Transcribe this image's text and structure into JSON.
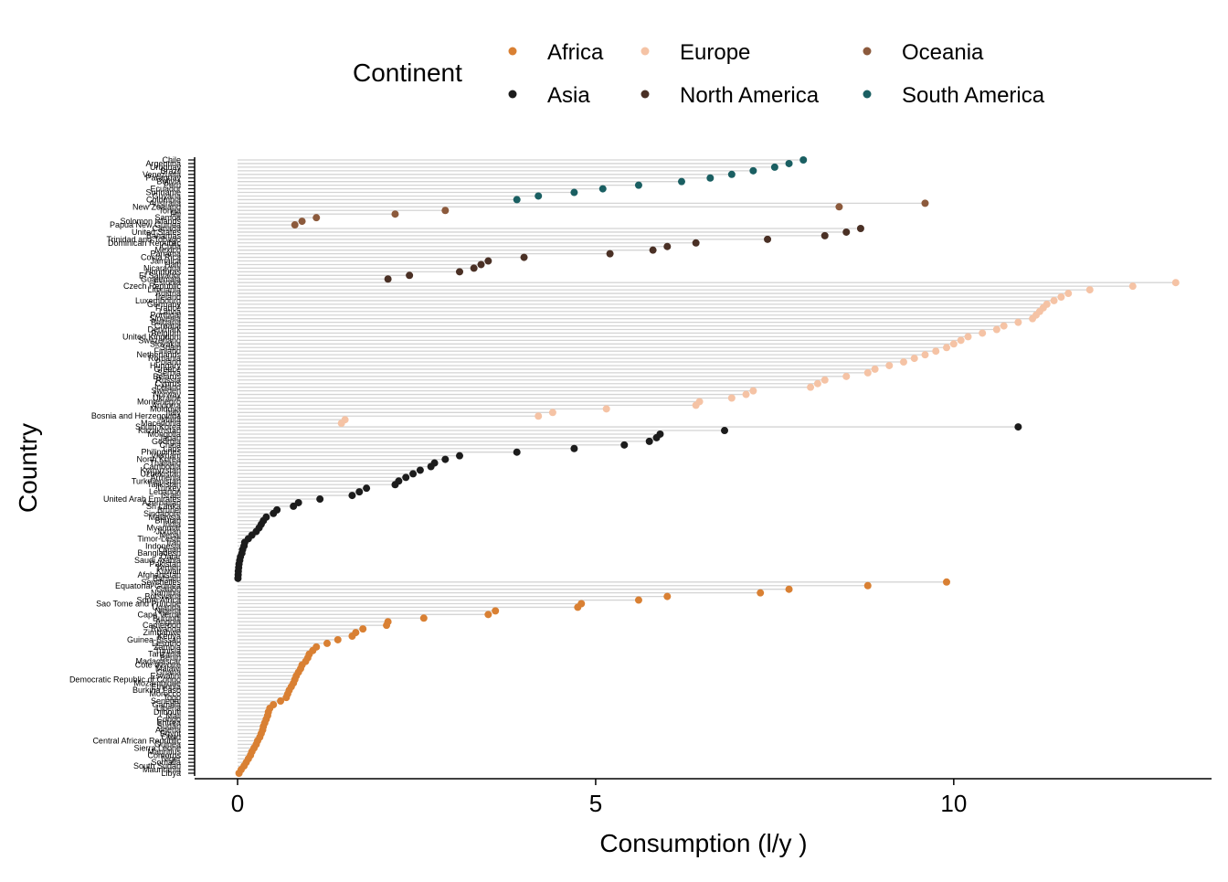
{
  "chart_data": {
    "type": "scatter",
    "subtype": "lollipop",
    "xlabel": "Consumption (l/y )",
    "ylabel": "Country",
    "xlim": [
      -0.6,
      13.6
    ],
    "x_ticks": [
      0,
      5,
      10
    ],
    "legend": {
      "title": "Continent",
      "placement": "top",
      "entries": [
        {
          "name": "Africa",
          "color": "#d98033"
        },
        {
          "name": "Asia",
          "color": "#1c1c1c"
        },
        {
          "name": "Europe",
          "color": "#f5c3a5"
        },
        {
          "name": "North America",
          "color": "#4a3025"
        },
        {
          "name": "Oceania",
          "color": "#8c5a3c"
        },
        {
          "name": "South America",
          "color": "#1a5f62"
        }
      ]
    },
    "series": [
      {
        "name": "South America",
        "color": "#1a5f62",
        "points": [
          {
            "country": "Chile",
            "value": 7.9
          },
          {
            "country": "Argentina",
            "value": 7.7
          },
          {
            "country": "Uruguay",
            "value": 7.5
          },
          {
            "country": "Brazil",
            "value": 7.2
          },
          {
            "country": "Venezuela",
            "value": 6.9
          },
          {
            "country": "Paraguay",
            "value": 6.6
          },
          {
            "country": "Bolivia",
            "value": 6.2
          },
          {
            "country": "Peru",
            "value": 5.6
          },
          {
            "country": "Ecuador",
            "value": 5.1
          },
          {
            "country": "Suriname",
            "value": 4.7
          },
          {
            "country": "Guyana",
            "value": 4.2
          },
          {
            "country": "Colombia",
            "value": 3.9
          }
        ]
      },
      {
        "name": "Oceania",
        "color": "#8c5a3c",
        "points": [
          {
            "country": "Australia",
            "value": 9.6
          },
          {
            "country": "New Zealand",
            "value": 8.4
          },
          {
            "country": "Tonga",
            "value": 2.9
          },
          {
            "country": "Fiji",
            "value": 2.2
          },
          {
            "country": "Samoa",
            "value": 1.1
          },
          {
            "country": "Solomon Islands",
            "value": 0.9
          },
          {
            "country": "Papua New Guinea",
            "value": 0.8
          }
        ]
      },
      {
        "name": "North America",
        "color": "#4a3025",
        "points": [
          {
            "country": "Canada",
            "value": 8.7
          },
          {
            "country": "United States",
            "value": 8.5
          },
          {
            "country": "Bahamas",
            "value": 8.2
          },
          {
            "country": "Trinidad and Tobago",
            "value": 7.4
          },
          {
            "country": "Dominican Republic",
            "value": 6.4
          },
          {
            "country": "Cuba",
            "value": 6.0
          },
          {
            "country": "Mexico",
            "value": 5.8
          },
          {
            "country": "Panama",
            "value": 5.2
          },
          {
            "country": "Costa Rica",
            "value": 4.0
          },
          {
            "country": "Jamaica",
            "value": 3.5
          },
          {
            "country": "Haiti",
            "value": 3.4
          },
          {
            "country": "Nicaragua",
            "value": 3.3
          },
          {
            "country": "Honduras",
            "value": 3.1
          },
          {
            "country": "El Salvador",
            "value": 2.4
          },
          {
            "country": "Guatemala",
            "value": 2.1
          }
        ]
      },
      {
        "name": "Europe",
        "color": "#f5c3a5",
        "points": [
          {
            "country": "Estonia",
            "value": 13.1
          },
          {
            "country": "Czech Republic",
            "value": 12.5
          },
          {
            "country": "Lithuania",
            "value": 11.9
          },
          {
            "country": "Austria",
            "value": 11.6
          },
          {
            "country": "Ireland",
            "value": 11.5
          },
          {
            "country": "Luxembourg",
            "value": 11.4
          },
          {
            "country": "Germany",
            "value": 11.3
          },
          {
            "country": "France",
            "value": 11.25
          },
          {
            "country": "Latvia",
            "value": 11.2
          },
          {
            "country": "Portugal",
            "value": 11.15
          },
          {
            "country": "Slovenia",
            "value": 11.1
          },
          {
            "country": "Bulgaria",
            "value": 10.9
          },
          {
            "country": "Croatia",
            "value": 10.7
          },
          {
            "country": "Denmark",
            "value": 10.6
          },
          {
            "country": "Belgium",
            "value": 10.4
          },
          {
            "country": "United Kingdom",
            "value": 10.2
          },
          {
            "country": "Switzerland",
            "value": 10.1
          },
          {
            "country": "Slovakia",
            "value": 10.0
          },
          {
            "country": "Spain",
            "value": 9.9
          },
          {
            "country": "Finland",
            "value": 9.75
          },
          {
            "country": "Netherlands",
            "value": 9.6
          },
          {
            "country": "Romania",
            "value": 9.45
          },
          {
            "country": "Poland",
            "value": 9.3
          },
          {
            "country": "Hungary",
            "value": 9.1
          },
          {
            "country": "Greece",
            "value": 8.9
          },
          {
            "country": "Serbia",
            "value": 8.8
          },
          {
            "country": "Belarus",
            "value": 8.5
          },
          {
            "country": "Russia",
            "value": 8.2
          },
          {
            "country": "Cyprus",
            "value": 8.1
          },
          {
            "country": "Iceland",
            "value": 8.0
          },
          {
            "country": "Sweden",
            "value": 7.2
          },
          {
            "country": "Norway",
            "value": 7.1
          },
          {
            "country": "Ukraine",
            "value": 6.9
          },
          {
            "country": "Montenegro",
            "value": 6.45
          },
          {
            "country": "Andorra",
            "value": 6.4
          },
          {
            "country": "Moldova",
            "value": 5.15
          },
          {
            "country": "Italy",
            "value": 4.4
          },
          {
            "country": "Bosnia and Herzegovina",
            "value": 4.2
          },
          {
            "country": "Malta",
            "value": 1.5
          },
          {
            "country": "Macedonia",
            "value": 1.45
          }
        ]
      },
      {
        "name": "Asia",
        "color": "#1c1c1c",
        "points": [
          {
            "country": "South Korea",
            "value": 10.9
          },
          {
            "country": "Kazakhstan",
            "value": 6.8
          },
          {
            "country": "Mongolia",
            "value": 5.9
          },
          {
            "country": "Japan",
            "value": 5.85
          },
          {
            "country": "Georgia",
            "value": 5.75
          },
          {
            "country": "China",
            "value": 5.4
          },
          {
            "country": "Laos",
            "value": 4.7
          },
          {
            "country": "Philippines",
            "value": 3.9
          },
          {
            "country": "Vietnam",
            "value": 3.1
          },
          {
            "country": "North Korea",
            "value": 2.9
          },
          {
            "country": "Thailand",
            "value": 2.75
          },
          {
            "country": "Cambodia",
            "value": 2.7
          },
          {
            "country": "Kyrgyzstan",
            "value": 2.55
          },
          {
            "country": "Uzbekistan",
            "value": 2.45
          },
          {
            "country": "Armenia",
            "value": 2.35
          },
          {
            "country": "Turkmenistan",
            "value": 2.25
          },
          {
            "country": "Tajikistan",
            "value": 2.2
          },
          {
            "country": "Turkey",
            "value": 1.8
          },
          {
            "country": "Lebanon",
            "value": 1.7
          },
          {
            "country": "Israel",
            "value": 1.6
          },
          {
            "country": "United Arab Emirates",
            "value": 1.15
          },
          {
            "country": "Azerbaijan",
            "value": 0.85
          },
          {
            "country": "Sri Lanka",
            "value": 0.78
          },
          {
            "country": "Brunei",
            "value": 0.55
          },
          {
            "country": "Singapore",
            "value": 0.5
          },
          {
            "country": "Malaysia",
            "value": 0.4
          },
          {
            "country": "Bhutan",
            "value": 0.36
          },
          {
            "country": "India",
            "value": 0.33
          },
          {
            "country": "Myanmar",
            "value": 0.3
          },
          {
            "country": "Jordan",
            "value": 0.26
          },
          {
            "country": "Nepal",
            "value": 0.2
          },
          {
            "country": "Timor-Leste",
            "value": 0.15
          },
          {
            "country": "Iran",
            "value": 0.1
          },
          {
            "country": "Indonesia",
            "value": 0.09
          },
          {
            "country": "Oman",
            "value": 0.07
          },
          {
            "country": "Bangladesh",
            "value": 0.06
          },
          {
            "country": "Qatar",
            "value": 0.04
          },
          {
            "country": "Saudi Arabia",
            "value": 0.03
          },
          {
            "country": "Pakistan",
            "value": 0.02
          },
          {
            "country": "Yemen",
            "value": 0.015
          },
          {
            "country": "Kuwait",
            "value": 0.01
          },
          {
            "country": "Afghanistan",
            "value": 0.008
          },
          {
            "country": "Bahrain",
            "value": 0.005
          }
        ]
      },
      {
        "name": "Africa",
        "color": "#d98033",
        "points": [
          {
            "country": "Seychelles",
            "value": 9.9
          },
          {
            "country": "Equatorial Guinea",
            "value": 8.8
          },
          {
            "country": "Gabon",
            "value": 7.7
          },
          {
            "country": "Namibia",
            "value": 7.3
          },
          {
            "country": "Botswana",
            "value": 6.0
          },
          {
            "country": "South Africa",
            "value": 5.6
          },
          {
            "country": "Sao Tome and Principe",
            "value": 4.8
          },
          {
            "country": "Uganda",
            "value": 4.75
          },
          {
            "country": "Nigeria",
            "value": 3.6
          },
          {
            "country": "Cape Verde",
            "value": 3.5
          },
          {
            "country": "Burundi",
            "value": 2.6
          },
          {
            "country": "Angola",
            "value": 2.1
          },
          {
            "country": "Cameroon",
            "value": 2.08
          },
          {
            "country": "Rwanda",
            "value": 1.75
          },
          {
            "country": "Zimbabwe",
            "value": 1.65
          },
          {
            "country": "Kenya",
            "value": 1.6
          },
          {
            "country": "Guinea-Bissau",
            "value": 1.4
          },
          {
            "country": "Lesotho",
            "value": 1.25
          },
          {
            "country": "Zambia",
            "value": 1.1
          },
          {
            "country": "Tunisia",
            "value": 1.05
          },
          {
            "country": "Tanzania",
            "value": 1.0
          },
          {
            "country": "Benin",
            "value": 0.98
          },
          {
            "country": "Madagascar",
            "value": 0.95
          },
          {
            "country": "Cote d'Ivoire",
            "value": 0.9
          },
          {
            "country": "Malawi",
            "value": 0.88
          },
          {
            "country": "Ghana",
            "value": 0.85
          },
          {
            "country": "Eswatini",
            "value": 0.82
          },
          {
            "country": "Democratic Republic of Congo",
            "value": 0.8
          },
          {
            "country": "Mozambique",
            "value": 0.78
          },
          {
            "country": "Ethiopia",
            "value": 0.75
          },
          {
            "country": "Burkina Faso",
            "value": 0.72
          },
          {
            "country": "Morocco",
            "value": 0.7
          },
          {
            "country": "Togo",
            "value": 0.68
          },
          {
            "country": "Senegal",
            "value": 0.6
          },
          {
            "country": "Gambia",
            "value": 0.5
          },
          {
            "country": "Liberia",
            "value": 0.45
          },
          {
            "country": "Djibouti",
            "value": 0.43
          },
          {
            "country": "Mali",
            "value": 0.42
          },
          {
            "country": "Congo",
            "value": 0.4
          },
          {
            "country": "Eritrea",
            "value": 0.38
          },
          {
            "country": "Sudan",
            "value": 0.36
          },
          {
            "country": "Algeria",
            "value": 0.35
          },
          {
            "country": "Egypt",
            "value": 0.33
          },
          {
            "country": "Chad",
            "value": 0.31
          },
          {
            "country": "Central African Republic",
            "value": 0.28
          },
          {
            "country": "Guinea",
            "value": 0.26
          },
          {
            "country": "Sierra Leone",
            "value": 0.23
          },
          {
            "country": "Mauritius",
            "value": 0.2
          },
          {
            "country": "Comoros",
            "value": 0.18
          },
          {
            "country": "Niger",
            "value": 0.15
          },
          {
            "country": "Somalia",
            "value": 0.12
          },
          {
            "country": "South Sudan",
            "value": 0.09
          },
          {
            "country": "Mauritania",
            "value": 0.05
          },
          {
            "country": "Libya",
            "value": 0.02
          }
        ]
      }
    ]
  }
}
